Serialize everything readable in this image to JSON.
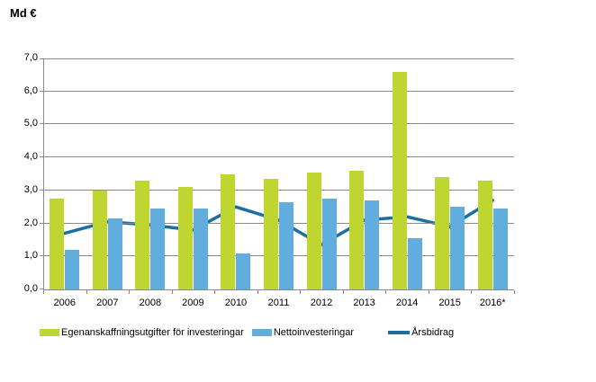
{
  "header": {
    "unit_label": "Md €"
  },
  "colors": {
    "grid": "#898989",
    "text": "#000000",
    "background": "#ffffff"
  },
  "chart_data": {
    "type": "bar",
    "title": "",
    "ylabel": "Md €",
    "xlabel": "",
    "ylim": [
      0,
      7
    ],
    "ytick_step": 1,
    "ytick_labels": [
      "0,0",
      "1,0",
      "2,0",
      "3,0",
      "4,0",
      "5,0",
      "6,0",
      "7,0"
    ],
    "grid": true,
    "legend_position": "bottom",
    "categories": [
      "2006",
      "2007",
      "2008",
      "2009",
      "2010",
      "2011",
      "2012",
      "2013",
      "2014",
      "2015",
      "2016*"
    ],
    "series": [
      {
        "name": "Egenanskaffningsutgifter för investeringar",
        "type": "bar",
        "color": "#BED62F",
        "values": [
          2.75,
          3.0,
          3.3,
          3.1,
          3.5,
          3.35,
          3.55,
          3.6,
          6.6,
          3.4,
          3.3
        ]
      },
      {
        "name": "Nettoinvesteringar",
        "type": "bar",
        "color": "#61AEDE",
        "values": [
          1.2,
          2.15,
          2.45,
          2.45,
          1.1,
          2.65,
          2.75,
          2.7,
          1.55,
          2.5,
          2.45
        ]
      },
      {
        "name": "Årsbidrag",
        "type": "line",
        "color": "#1B6FA5",
        "values": [
          1.7,
          2.05,
          1.95,
          1.8,
          2.5,
          2.1,
          1.35,
          2.1,
          2.2,
          1.9,
          2.7
        ]
      }
    ]
  }
}
